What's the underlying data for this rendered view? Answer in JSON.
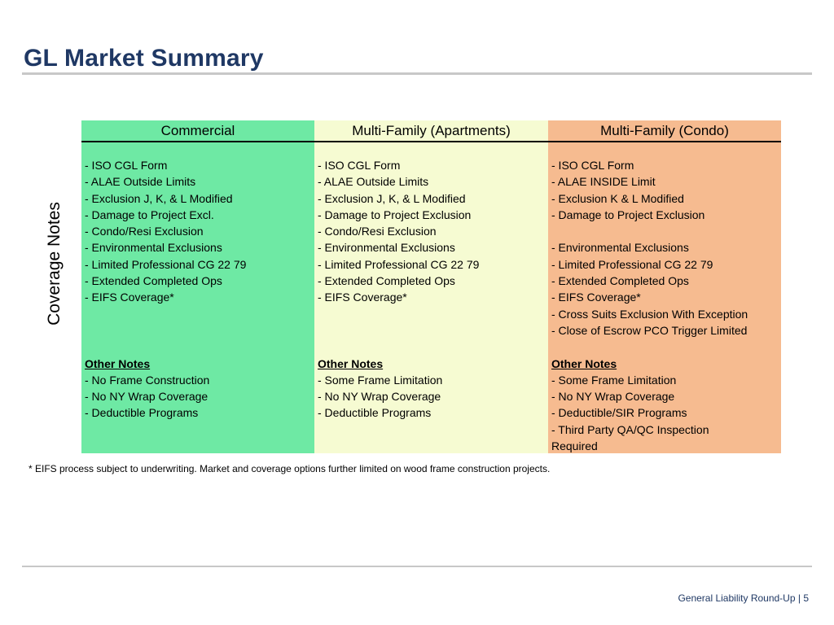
{
  "page": {
    "title": "GL Market Summary",
    "side_label": "Coverage Notes"
  },
  "colors": {
    "title": "#1f3864",
    "commercial_bg": "#6ee9a4",
    "apartments_bg": "#f6fbd2",
    "condo_bg": "#f6bb90"
  },
  "columns": [
    {
      "header": "Commercial",
      "coverage": [
        "- ISO CGL Form",
        "- ALAE Outside Limits",
        "- Exclusion J, K, & L Modified",
        "- Damage to Project Excl.",
        "- Condo/Resi Exclusion",
        "- Environmental Exclusions",
        "- Limited Professional CG 22 79",
        "- Extended Completed Ops",
        "- EIFS Coverage*",
        "",
        "",
        ""
      ],
      "notes_heading": "Other Notes",
      "notes": [
        "- No Frame Construction",
        "- No NY Wrap Coverage",
        "- Deductible Programs"
      ]
    },
    {
      "header": "Multi-Family (Apartments)",
      "coverage": [
        "- ISO CGL Form",
        "- ALAE Outside Limits",
        "- Exclusion J, K, & L Modified",
        "- Damage to Project Exclusion",
        "- Condo/Resi Exclusion",
        "- Environmental Exclusions",
        "- Limited Professional CG 22 79",
        "- Extended Completed Ops",
        "- EIFS Coverage*",
        "",
        "",
        ""
      ],
      "notes_heading": "Other Notes",
      "notes": [
        "- Some Frame Limitation",
        "- No NY Wrap Coverage",
        "- Deductible Programs"
      ]
    },
    {
      "header": "Multi-Family (Condo)",
      "coverage": [
        "-  ISO CGL Form",
        "- ALAE INSIDE Limit",
        "- Exclusion K & L Modified",
        "- Damage to Project Exclusion",
        "",
        "- Environmental Exclusions",
        "- Limited Professional CG 22 79",
        "- Extended Completed Ops",
        "- EIFS Coverage*",
        "- Cross Suits Exclusion With Exception",
        "- Close of Escrow PCO Trigger Limited",
        ""
      ],
      "notes_heading": "Other Notes",
      "notes": [
        "- Some Frame Limitation",
        "- No NY Wrap Coverage",
        "- Deductible/SIR Programs",
        "- Third Party QA/QC Inspection",
        "Required"
      ]
    }
  ],
  "footnote": "* EIFS process subject to underwriting.  Market and coverage options further limited on wood frame construction projects.",
  "footer": {
    "text": "General Liability Round-Up |",
    "page_number": "5"
  }
}
